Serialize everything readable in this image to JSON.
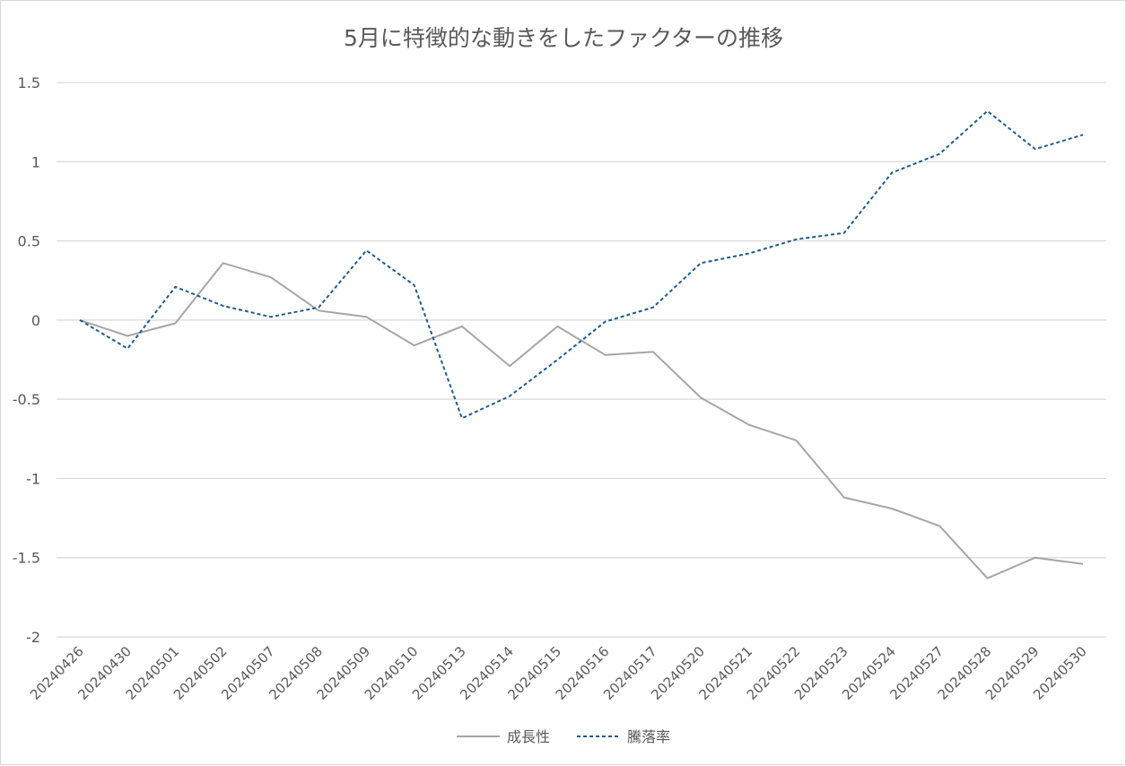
{
  "chart_data": {
    "type": "line",
    "title": "5月に特徴的な動きをしたファクターの推移",
    "xlabel": "",
    "ylabel": "",
    "ylim": [
      -2,
      1.5
    ],
    "yticks": [
      1.5,
      1,
      0.5,
      0,
      -0.5,
      -1,
      -1.5,
      -2
    ],
    "ytick_labels": [
      "1.5",
      "1",
      "0.5",
      "0",
      "-0.5",
      "-1",
      "-1.5",
      "-2"
    ],
    "categories": [
      "20240426",
      "20240430",
      "20240501",
      "20240502",
      "20240507",
      "20240508",
      "20240509",
      "20240510",
      "20240513",
      "20240514",
      "20240515",
      "20240516",
      "20240517",
      "20240520",
      "20240521",
      "20240522",
      "20240523",
      "20240524",
      "20240527",
      "20240528",
      "20240529",
      "20240530"
    ],
    "grid": true,
    "legend_position": "bottom",
    "series": [
      {
        "name": "成長性",
        "color": "#a6a6a6",
        "style": "solid",
        "values": [
          0,
          -0.1,
          -0.02,
          0.36,
          0.27,
          0.06,
          0.02,
          -0.16,
          -0.04,
          -0.29,
          -0.04,
          -0.22,
          -0.2,
          -0.49,
          -0.66,
          -0.76,
          -1.12,
          -1.19,
          -1.3,
          -1.63,
          -1.5,
          -1.54
        ]
      },
      {
        "name": "騰落率",
        "color": "#1f5b8f",
        "style": "dashed",
        "values": [
          0,
          -0.18,
          0.21,
          0.09,
          0.02,
          0.08,
          0.44,
          0.22,
          -0.62,
          -0.48,
          -0.25,
          -0.01,
          0.08,
          0.36,
          0.42,
          0.51,
          0.55,
          0.93,
          1.05,
          1.32,
          1.08,
          1.17
        ]
      }
    ]
  }
}
